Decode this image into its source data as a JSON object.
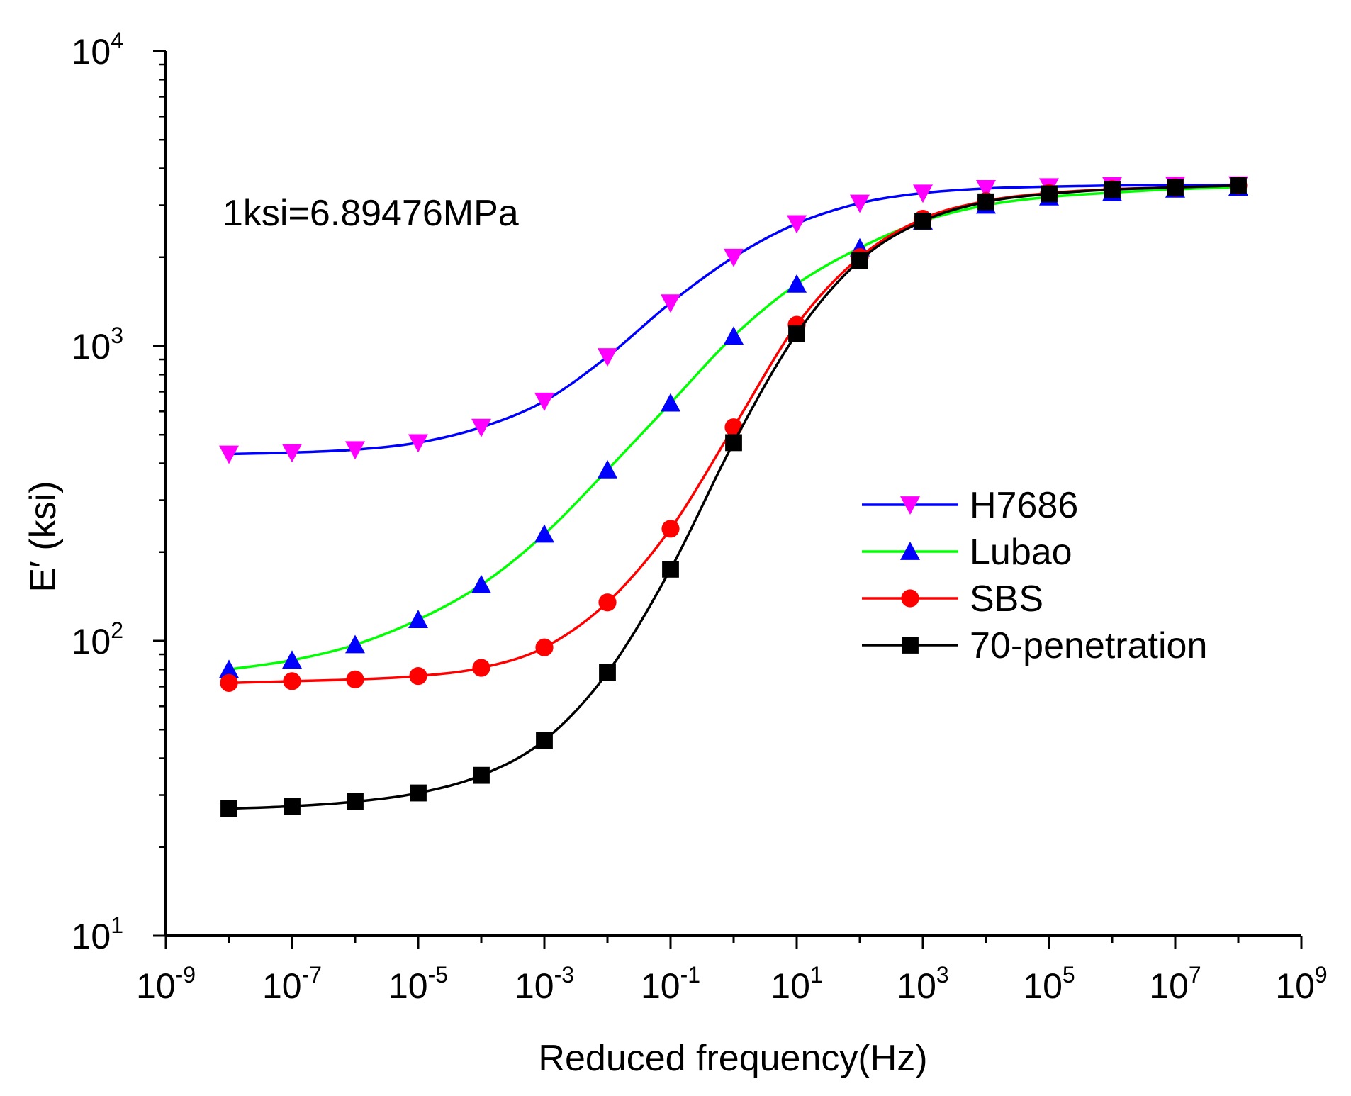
{
  "chart_data": {
    "type": "line",
    "xscale": "log",
    "yscale": "log",
    "xlim_exp": [
      -9,
      9
    ],
    "ylim_exp": [
      1,
      4
    ],
    "x_tick_exponents": [
      "-9",
      "-7",
      "-5",
      "-3",
      "-1",
      "1",
      "3",
      "5",
      "7",
      "9"
    ],
    "y_tick_exponents": [
      "1",
      "2",
      "3",
      "4"
    ],
    "tick_base": "10",
    "xlabel": "Reduced frequency(Hz)",
    "ylabel": "E′ (ksi)",
    "annotation": "1ksi=6.89476MPa",
    "legend_position": "center-right",
    "x": [
      1e-08,
      1e-07,
      1e-06,
      1e-05,
      0.0001,
      0.001,
      0.01,
      0.1,
      1,
      10,
      100,
      1000,
      10000,
      100000,
      1000000,
      10000000,
      100000000
    ],
    "series": [
      {
        "name": "H7686",
        "line_color": "#0000ff",
        "marker_color": "#ff00ff",
        "marker": "triangle-down",
        "values": [
          430,
          435,
          445,
          470,
          530,
          650,
          920,
          1400,
          2000,
          2600,
          3050,
          3300,
          3420,
          3470,
          3500,
          3510,
          3520
        ]
      },
      {
        "name": "Lubao",
        "line_color": "#00ff00",
        "marker_color": "#0000ff",
        "marker": "triangle-up",
        "values": [
          80,
          86,
          97,
          118,
          155,
          230,
          380,
          640,
          1080,
          1620,
          2150,
          2650,
          3000,
          3200,
          3310,
          3400,
          3450
        ]
      },
      {
        "name": "SBS",
        "line_color": "#ff0000",
        "marker_color": "#ff0000",
        "marker": "circle",
        "values": [
          72,
          73,
          74,
          76,
          81,
          95,
          135,
          240,
          530,
          1180,
          2000,
          2700,
          3100,
          3300,
          3400,
          3450,
          3500
        ]
      },
      {
        "name": "70-penetration",
        "line_color": "#000000",
        "marker_color": "#000000",
        "marker": "square",
        "values": [
          27,
          27.5,
          28.5,
          30.5,
          35,
          46,
          78,
          175,
          470,
          1100,
          1950,
          2650,
          3080,
          3280,
          3390,
          3450,
          3500
        ]
      }
    ]
  }
}
